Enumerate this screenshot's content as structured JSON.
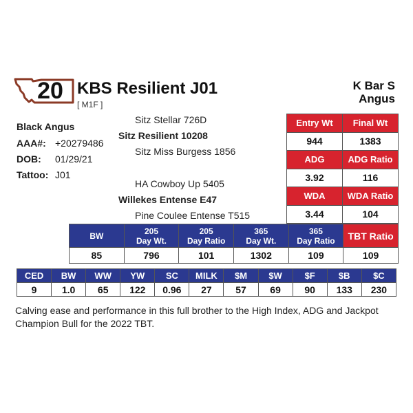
{
  "lot": {
    "number": "20",
    "badge_border_color": "#8b3a26"
  },
  "bull": {
    "name": "KBS Resilient J01",
    "code": "[ M1F ]",
    "breed": "Black Angus",
    "aaa_label": "AAA#:",
    "aaa_value": "+20279486",
    "dob_label": "DOB:",
    "dob_value": "01/29/21",
    "tattoo_label": "Tattoo:",
    "tattoo_value": "J01"
  },
  "ranch": {
    "line1": "K Bar S",
    "line2": "Angus"
  },
  "pedigree": {
    "sire_sire": "Sitz Stellar 726D",
    "sire": "Sitz Resilient 10208",
    "sire_dam": "Sitz Miss Burgess 1856",
    "dam_sire": "HA Cowboy Up 5405",
    "dam": "Willekes Entense E47",
    "dam_dam": "Pine Coulee Entense T515"
  },
  "performance": {
    "entry_wt_label": "Entry Wt",
    "final_wt_label": "Final Wt",
    "entry_wt": "944",
    "final_wt": "1383",
    "adg_label": "ADG",
    "adg_ratio_label": "ADG Ratio",
    "adg": "3.92",
    "adg_ratio": "116",
    "wda_label": "WDA",
    "wda_ratio_label": "WDA Ratio",
    "wda": "3.44",
    "wda_ratio": "104"
  },
  "weights": {
    "headers": [
      {
        "line1": "BW",
        "line2": ""
      },
      {
        "line1": "205",
        "line2": "Day Wt."
      },
      {
        "line1": "205",
        "line2": "Day Ratio"
      },
      {
        "line1": "365",
        "line2": "Day Wt."
      },
      {
        "line1": "365",
        "line2": "Day Ratio"
      }
    ],
    "tbt_label": "TBT Ratio",
    "values": [
      "85",
      "796",
      "101",
      "1302",
      "109"
    ],
    "tbt_value": "109"
  },
  "epds": {
    "headers": [
      "CED",
      "BW",
      "WW",
      "YW",
      "SC",
      "MILK",
      "$M",
      "$W",
      "$F",
      "$B",
      "$C"
    ],
    "values": [
      "9",
      "1.0",
      "65",
      "122",
      "0.96",
      "27",
      "57",
      "69",
      "90",
      "133",
      "230"
    ]
  },
  "description": "Calving ease and performance in this full brother to the High Index, ADG and Jackpot Champion Bull for the 2022 TBT.",
  "colors": {
    "red_header": "#d7232e",
    "blue_header": "#2b3990"
  }
}
